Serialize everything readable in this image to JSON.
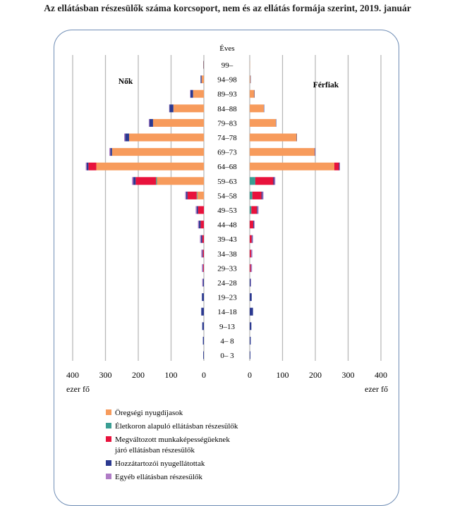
{
  "title": "Az ellátásban részesülők száma korcsoport, nem és az ellátás formája szerint, 2019. január",
  "chart_data": {
    "type": "bar",
    "orientation": "horizontal-population-pyramid",
    "center_label": "Éves",
    "left_panel": "Nők",
    "right_panel": "Férfiak",
    "unit_label_left": "ezer fő",
    "unit_label_right": "ezer fő",
    "xlim": [
      0,
      400
    ],
    "left_ticks": [
      "400",
      "300",
      "200",
      "100",
      "0"
    ],
    "right_ticks": [
      "0",
      "100",
      "200",
      "300",
      "400"
    ],
    "grid": true,
    "legend_position": "bottom-left",
    "categories": [
      "99–",
      "94–98",
      "89–93",
      "84–88",
      "79–83",
      "74–78",
      "69–73",
      "64–68",
      "59–63",
      "54–58",
      "49–53",
      "44–48",
      "39–43",
      "34–38",
      "29–33",
      "24–28",
      "19–23",
      "14–18",
      "9–13",
      "4– 8",
      "0– 3"
    ],
    "series": [
      {
        "name": "Öregségi nyugdíjasok",
        "color": "#f79b5c",
        "women": [
          1,
          7,
          33,
          93,
          155,
          228,
          280,
          328,
          143,
          20,
          0,
          0,
          0,
          0,
          0,
          0,
          0,
          0,
          0,
          0,
          0
        ],
        "men": [
          0.5,
          2,
          14,
          43,
          80,
          143,
          198,
          258,
          0,
          0,
          0,
          0,
          0,
          0,
          0,
          0,
          0,
          0,
          0,
          0,
          0
        ]
      },
      {
        "name": "Életkoron alapuló ellátásban részesülők",
        "color": "#3a9e93",
        "women": [
          0,
          0,
          0,
          0,
          0,
          0,
          0,
          0,
          3,
          2,
          0,
          0,
          0,
          0,
          0,
          0,
          0,
          0,
          0,
          0,
          0
        ],
        "men": [
          0,
          0,
          0,
          0,
          0,
          0,
          0,
          0,
          17,
          8,
          5,
          0,
          0,
          0,
          0,
          0,
          0,
          0,
          0,
          0,
          0
        ]
      },
      {
        "name": "Megváltozott munkaképességüeknek\njáró ellátásban részesülők",
        "color": "#e8123c",
        "women": [
          0,
          0,
          0,
          0,
          0,
          0,
          0,
          24,
          62,
          28,
          18,
          10,
          5,
          3,
          2,
          0,
          0,
          0,
          0,
          0,
          0
        ],
        "men": [
          0,
          0,
          0,
          0,
          0,
          0,
          0,
          14,
          55,
          28,
          17,
          11,
          6,
          4,
          3,
          0,
          0,
          0,
          0,
          0,
          0
        ]
      },
      {
        "name": "Hozzátartozói nyugellátottak",
        "color": "#2b3990",
        "women": [
          1,
          3,
          8,
          12,
          11,
          12,
          5,
          5,
          7,
          4,
          4,
          5,
          4,
          2,
          1,
          3,
          6,
          8,
          5,
          3,
          2
        ],
        "men": [
          0,
          1,
          1,
          1,
          1,
          1,
          1,
          2,
          3,
          3,
          2,
          2,
          2,
          1,
          1,
          3,
          6,
          10,
          5,
          3,
          2
        ]
      },
      {
        "name": "Egyéb ellátásban részesülők",
        "color": "#b07cc6",
        "women": [
          0,
          0,
          1,
          1,
          2,
          3,
          3,
          3,
          4,
          3,
          3,
          3,
          3,
          3,
          3,
          2,
          0,
          0,
          0,
          0,
          0
        ],
        "men": [
          0,
          0,
          0,
          0,
          0,
          0,
          1,
          1,
          3,
          3,
          3,
          2,
          2,
          3,
          3,
          1,
          0,
          0,
          0,
          0,
          0
        ]
      }
    ]
  }
}
